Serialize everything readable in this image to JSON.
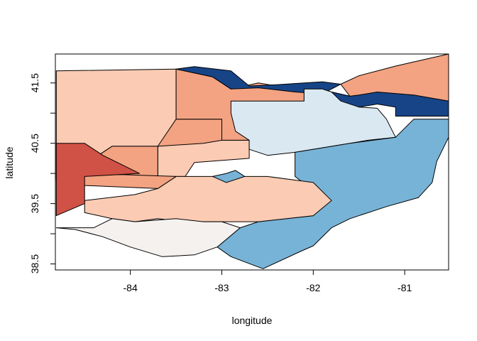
{
  "chart_data": {
    "type": "choropleth",
    "xlabel": "longitude",
    "ylabel": "latitude",
    "xlim": [
      -84.82,
      -80.52
    ],
    "ylim": [
      38.4,
      41.98
    ],
    "x_ticks": [
      -84,
      -83,
      -82,
      -81
    ],
    "y_ticks": [
      38.5,
      39.5,
      40.5,
      41.5
    ],
    "x_tick_labels": [
      "-84",
      "-83",
      "-82",
      "-81"
    ],
    "y_tick_labels": [
      "38.5",
      "39.5",
      "40.5",
      "41.5"
    ],
    "regions": [
      {
        "id": "nw",
        "color": "#fbcbb3",
        "points": [
          [
            -84.81,
            41.7
          ],
          [
            -83.5,
            41.73
          ],
          [
            -83.5,
            40.9
          ],
          [
            -83,
            40.9
          ],
          [
            -83,
            40.55
          ],
          [
            -82.7,
            40.55
          ],
          [
            -82.7,
            40.25
          ],
          [
            -83.3,
            40.18
          ],
          [
            -83.4,
            39.95
          ],
          [
            -83.7,
            39.95
          ],
          [
            -83.7,
            40.45
          ],
          [
            -84.2,
            40.45
          ],
          [
            -84.4,
            40.25
          ],
          [
            -84.81,
            40.3
          ]
        ]
      },
      {
        "id": "west-center",
        "color": "#f3a382",
        "points": [
          [
            -84.81,
            40.3
          ],
          [
            -84.81,
            39.95
          ],
          [
            -84.1,
            39.98
          ],
          [
            -83.7,
            39.95
          ],
          [
            -83.7,
            40.45
          ],
          [
            -83.2,
            40.5
          ],
          [
            -83,
            40.55
          ],
          [
            -83,
            40.9
          ],
          [
            -83.5,
            40.9
          ],
          [
            -83.7,
            40.45
          ],
          [
            -84.2,
            40.45
          ],
          [
            -84.4,
            40.25
          ]
        ]
      },
      {
        "id": "mid-north",
        "color": "#f3a382",
        "points": [
          [
            -83.5,
            41.73
          ],
          [
            -83.1,
            41.6
          ],
          [
            -82.9,
            41.4
          ],
          [
            -82.6,
            41.5
          ],
          [
            -82.4,
            41.45
          ],
          [
            -82.1,
            41.4
          ],
          [
            -82.1,
            41.2
          ],
          [
            -82.6,
            41.05
          ],
          [
            -82.7,
            40.55
          ],
          [
            -83,
            40.55
          ],
          [
            -83,
            40.9
          ],
          [
            -83.5,
            40.9
          ]
        ]
      },
      {
        "id": "north-lake",
        "color": "#174487",
        "points": [
          [
            -83.5,
            41.73
          ],
          [
            -83.3,
            41.77
          ],
          [
            -82.9,
            41.7
          ],
          [
            -82.7,
            41.45
          ],
          [
            -82.4,
            41.47
          ],
          [
            -82.1,
            41.5
          ],
          [
            -81.9,
            41.52
          ],
          [
            -81.7,
            41.48
          ],
          [
            -81.9,
            41.32
          ],
          [
            -82.2,
            41.35
          ],
          [
            -82.6,
            41.42
          ],
          [
            -82.9,
            41.4
          ],
          [
            -83.1,
            41.6
          ]
        ]
      },
      {
        "id": "north-central",
        "color": "#dae8f2",
        "points": [
          [
            -82.9,
            41.2
          ],
          [
            -82.1,
            41.2
          ],
          [
            -82.1,
            41.4
          ],
          [
            -81.9,
            41.4
          ],
          [
            -81.8,
            41.35
          ],
          [
            -81.6,
            41.28
          ],
          [
            -81.5,
            41.1
          ],
          [
            -81.3,
            41.08
          ],
          [
            -81.2,
            40.9
          ],
          [
            -81.1,
            40.6
          ],
          [
            -81.4,
            40.55
          ],
          [
            -81.6,
            40.5
          ],
          [
            -82.2,
            40.35
          ],
          [
            -82.5,
            40.3
          ],
          [
            -82.7,
            40.4
          ],
          [
            -82.7,
            40.55
          ],
          [
            -82.85,
            40.7
          ],
          [
            -82.9,
            41
          ]
        ]
      },
      {
        "id": "ne-salmon",
        "color": "#f3a382",
        "points": [
          [
            -81.7,
            41.48
          ],
          [
            -81.5,
            41.62
          ],
          [
            -81.1,
            41.78
          ],
          [
            -80.52,
            41.98
          ],
          [
            -80.52,
            41.2
          ],
          [
            -80.9,
            41.15
          ],
          [
            -81.0,
            41.25
          ],
          [
            -81.3,
            41.22
          ],
          [
            -81.5,
            41.2
          ],
          [
            -81.6,
            41.28
          ]
        ]
      },
      {
        "id": "ne-dark",
        "color": "#174487",
        "points": [
          [
            -81.8,
            41.35
          ],
          [
            -81.6,
            41.28
          ],
          [
            -81.5,
            41.3
          ],
          [
            -81.3,
            41.35
          ],
          [
            -80.9,
            41.3
          ],
          [
            -80.52,
            41.2
          ],
          [
            -80.52,
            40.95
          ],
          [
            -80.9,
            40.95
          ],
          [
            -81.1,
            40.95
          ],
          [
            -81.1,
            41.1
          ],
          [
            -81.3,
            41.15
          ],
          [
            -81.5,
            41.1
          ],
          [
            -81.7,
            41.2
          ]
        ]
      },
      {
        "id": "east",
        "color": "#77b3d6",
        "points": [
          [
            -82.2,
            40.35
          ],
          [
            -81.6,
            40.5
          ],
          [
            -81.1,
            40.6
          ],
          [
            -80.9,
            40.9
          ],
          [
            -80.52,
            40.9
          ],
          [
            -80.52,
            40.6
          ],
          [
            -80.65,
            40.2
          ],
          [
            -80.7,
            39.85
          ],
          [
            -80.85,
            39.6
          ],
          [
            -81.2,
            39.45
          ],
          [
            -81.6,
            39.25
          ],
          [
            -81.8,
            39.1
          ],
          [
            -82.0,
            38.8
          ],
          [
            -82.15,
            38.7
          ],
          [
            -82.55,
            38.42
          ],
          [
            -82.9,
            38.62
          ],
          [
            -83.05,
            38.78
          ],
          [
            -82.8,
            39.1
          ],
          [
            -82.6,
            39.2
          ],
          [
            -82.0,
            39.3
          ],
          [
            -81.85,
            39.55
          ],
          [
            -82.2,
            39.95
          ]
        ]
      },
      {
        "id": "south-central",
        "color": "#fbcbb3",
        "points": [
          [
            -83.5,
            39.95
          ],
          [
            -82.5,
            39.95
          ],
          [
            -82.0,
            39.85
          ],
          [
            -81.8,
            39.55
          ],
          [
            -82.0,
            39.3
          ],
          [
            -82.6,
            39.2
          ],
          [
            -83.0,
            39.2
          ],
          [
            -83.4,
            39.2
          ],
          [
            -83.7,
            39.25
          ],
          [
            -83.95,
            39.2
          ],
          [
            -84.2,
            39.25
          ],
          [
            -84.5,
            39.35
          ],
          [
            -84.5,
            39.55
          ],
          [
            -83.95,
            39.65
          ],
          [
            -83.7,
            39.75
          ]
        ]
      },
      {
        "id": "southwest-small",
        "color": "#f3a382",
        "points": [
          [
            -84.5,
            39.8
          ],
          [
            -83.7,
            39.75
          ],
          [
            -83.5,
            39.95
          ],
          [
            -84.1,
            39.98
          ],
          [
            -84.81,
            39.95
          ],
          [
            -84.81,
            39.9
          ]
        ]
      },
      {
        "id": "sw-red",
        "color": "#d05145",
        "points": [
          [
            -84.81,
            40.5
          ],
          [
            -84.5,
            40.5
          ],
          [
            -84.3,
            40.3
          ],
          [
            -83.9,
            40.0
          ],
          [
            -84.5,
            39.95
          ],
          [
            -84.5,
            39.5
          ],
          [
            -84.81,
            39.3
          ]
        ]
      },
      {
        "id": "south",
        "color": "#f5f1ee",
        "points": [
          [
            -84.81,
            39.1
          ],
          [
            -84.4,
            39.1
          ],
          [
            -84.2,
            39.25
          ],
          [
            -83.95,
            39.2
          ],
          [
            -83.5,
            39.25
          ],
          [
            -83.2,
            39.2
          ],
          [
            -83.0,
            39.2
          ],
          [
            -82.8,
            39.1
          ],
          [
            -83.05,
            38.78
          ],
          [
            -83.3,
            38.65
          ],
          [
            -83.65,
            38.62
          ],
          [
            -84.0,
            38.78
          ],
          [
            -84.3,
            38.95
          ],
          [
            -84.6,
            39.07
          ]
        ]
      },
      {
        "id": "central-blue",
        "color": "#77b3d6",
        "points": [
          [
            -83.1,
            39.95
          ],
          [
            -82.95,
            40.0
          ],
          [
            -82.85,
            40.05
          ],
          [
            -82.75,
            39.95
          ],
          [
            -82.95,
            39.85
          ]
        ]
      }
    ]
  }
}
